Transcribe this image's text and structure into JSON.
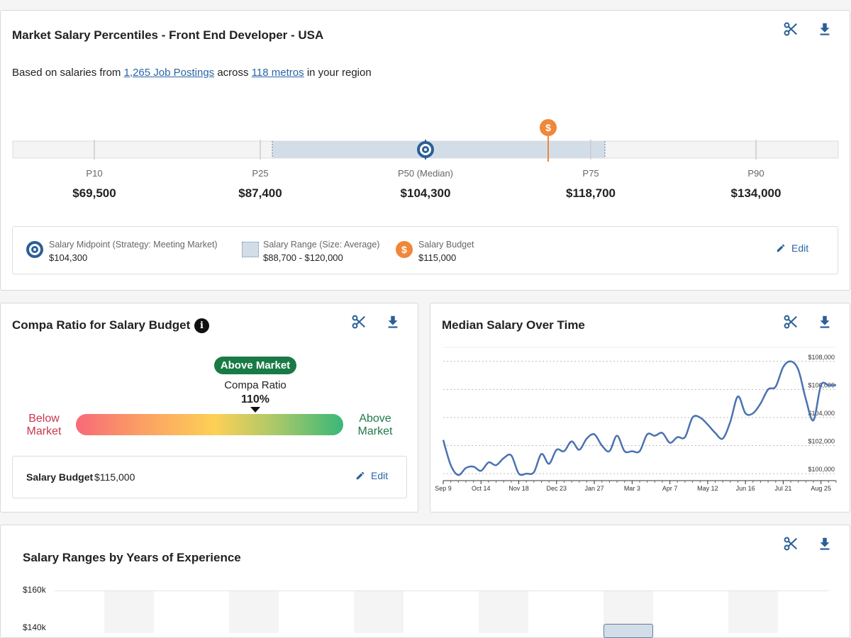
{
  "percentiles_card": {
    "title": "Market Salary Percentiles - Front End Developer - USA",
    "subtitle_pre": "Based on salaries from",
    "postings_link": "1,265 Job Postings",
    "subtitle_mid": "across",
    "metros_link": "118 metros",
    "subtitle_post": "in your region",
    "percentiles": [
      {
        "label": "P10",
        "value": "$69,500"
      },
      {
        "label": "P25",
        "value": "$87,400"
      },
      {
        "label": "P50 (Median)",
        "value": "$104,300"
      },
      {
        "label": "P75",
        "value": "$118,700"
      },
      {
        "label": "P90",
        "value": "$134,000"
      }
    ],
    "budget_marker_symbol": "$",
    "legend": {
      "midpoint_name": "Salary Midpoint (Strategy: Meeting Market)",
      "midpoint_value": "$104,300",
      "range_name": "Salary Range (Size: Average)",
      "range_value": "$88,700 - $120,000",
      "budget_name": "Salary Budget",
      "budget_value": "$115,000",
      "budget_symbol": "$",
      "edit_label": "Edit"
    },
    "colors": {
      "range_fill": "#d3dde7",
      "midpoint": "#2a5f98",
      "budget": "#f0873a"
    }
  },
  "compa_card": {
    "title": "Compa Ratio for Salary Budget",
    "info_symbol": "i",
    "badge": "Above Market",
    "ratio_label": "Compa Ratio",
    "ratio_value": "110%",
    "ratio": 1.1,
    "left_label_1": "Below",
    "left_label_2": "Market",
    "right_label_1": "Above",
    "right_label_2": "Market",
    "budget_label": "Salary Budget",
    "budget_value": "$115,000",
    "edit_label": "Edit",
    "colors": {
      "below": "#c8374b",
      "above": "#1f7a4a",
      "badge": "#1a7a45"
    }
  },
  "median_card": {
    "title": "Median Salary Over Time"
  },
  "chart_data": {
    "type": "line",
    "title": "Median Salary Over Time",
    "x_ticks": [
      "Sep 9",
      "Oct 14",
      "Nov 18",
      "Dec 23",
      "Jan 27",
      "Mar 3",
      "Apr 7",
      "May 12",
      "Jun 16",
      "Jul 21",
      "Aug 25"
    ],
    "y_ticks": [
      "$100,000",
      "$102,000",
      "$104,000",
      "$106,000",
      "$108,000"
    ],
    "ylim": [
      99500,
      109000
    ],
    "xlim": [
      0,
      52
    ],
    "series": [
      {
        "color": "#4a72b0",
        "x": [
          0,
          1,
          2,
          3,
          4,
          5,
          6,
          7,
          8,
          9,
          10,
          11,
          12,
          13,
          14,
          15,
          16,
          17,
          18,
          19,
          20,
          21,
          22,
          23,
          24,
          25,
          26,
          27,
          28,
          29,
          30,
          31,
          32,
          33,
          34,
          35,
          36,
          37,
          38,
          39,
          40,
          41,
          42,
          43,
          44,
          45,
          46,
          47,
          48,
          49,
          50,
          51,
          52
        ],
        "y": [
          102400,
          100600,
          99900,
          100400,
          100500,
          100200,
          100800,
          100600,
          101100,
          101300,
          100000,
          100000,
          100100,
          101400,
          100700,
          101700,
          101600,
          102300,
          101700,
          102500,
          102800,
          102000,
          101600,
          102700,
          101600,
          101600,
          101600,
          102800,
          102700,
          102900,
          102200,
          102600,
          102600,
          104000,
          104000,
          103500,
          102900,
          102500,
          103700,
          105500,
          104300,
          104300,
          105000,
          106000,
          106200,
          107600,
          108000,
          107400,
          105300,
          103800,
          106300,
          106300,
          106300
        ]
      }
    ],
    "xlabel": "",
    "ylabel": "",
    "grid": true
  },
  "experience_card": {
    "title": "Salary Ranges by Years of Experience",
    "y_ticks": [
      "$160k",
      "$140k"
    ]
  },
  "tools": {
    "scissors": "scissors-icon",
    "download": "download-icon"
  }
}
